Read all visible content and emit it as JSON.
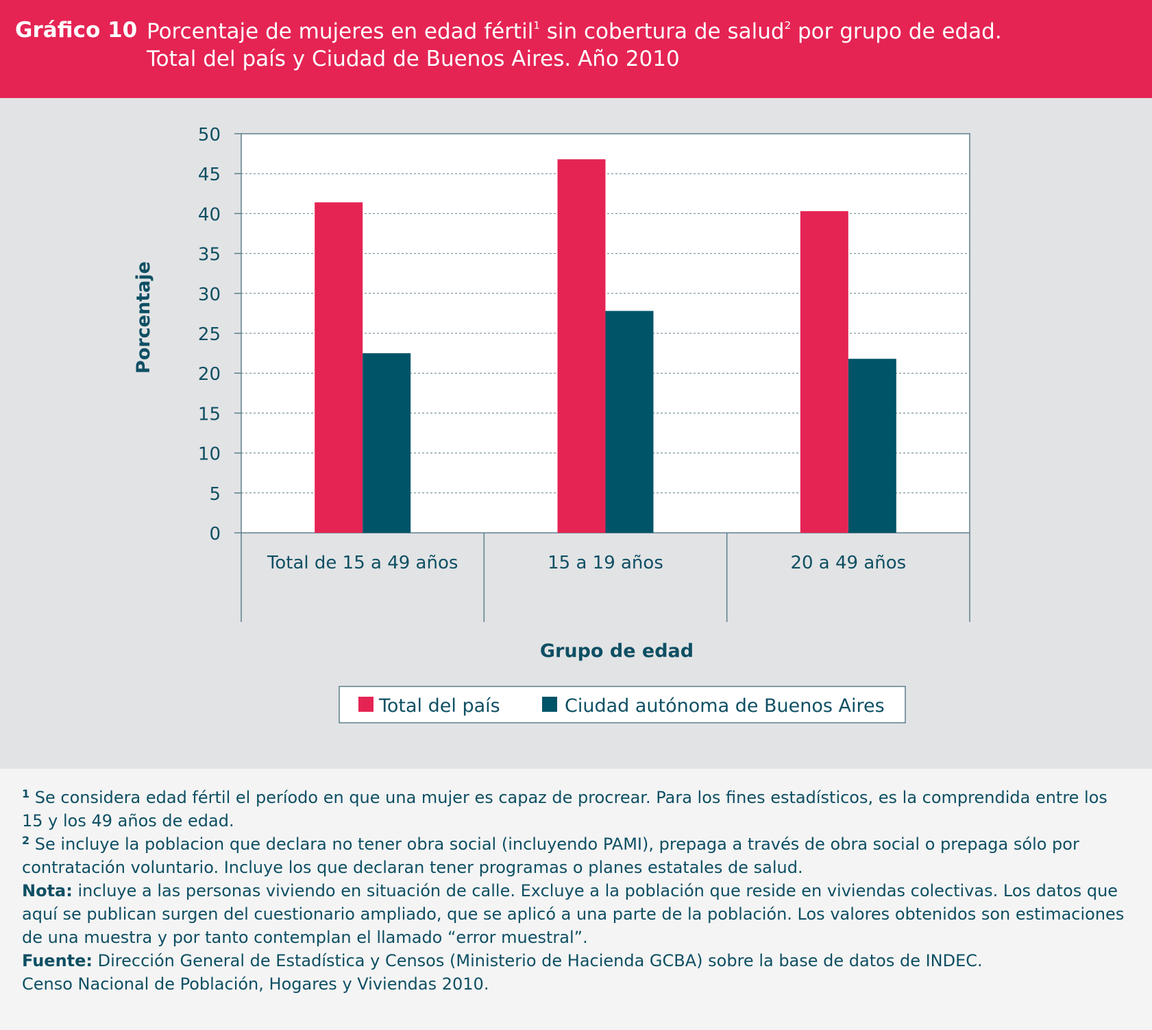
{
  "header": {
    "label": "Gráfico 10",
    "title_part1": "Porcentaje de mujeres en edad fértil",
    "title_sup1": "1",
    "title_part2": " sin cobertura de salud",
    "title_sup2": "2",
    "title_part3": " por grupo de edad.",
    "title_line2": "Total del país y Ciudad de Buenos Aires. Año 2010"
  },
  "colors": {
    "accent": "#e52454",
    "series2": "#005468",
    "text": "#0e4f63",
    "panel": "#e2e3e5"
  },
  "chart_data": {
    "type": "bar",
    "categories": [
      "Total de 15 a 49 años",
      "15 a 19 años",
      "20 a 49 años"
    ],
    "series": [
      {
        "name": "Total del país",
        "color": "#e52454",
        "values": [
          41.4,
          46.8,
          40.3
        ]
      },
      {
        "name": "Ciudad autónoma de Buenos Aires",
        "color": "#005468",
        "values": [
          22.5,
          27.8,
          21.8
        ]
      }
    ],
    "ylabel": "Porcentaje",
    "xlabel": "Grupo de edad",
    "ylim": [
      0,
      50
    ],
    "yticks": [
      0,
      5,
      10,
      15,
      20,
      25,
      30,
      35,
      40,
      45,
      50
    ],
    "grid": true,
    "legend": "bottom"
  },
  "notes": {
    "n1_sup": "1",
    "n1_text": " Se considera edad fértil el período en que una mujer es capaz de procrear. Para los fines estadísticos, es la comprendida entre los 15 y los 49 años de edad.",
    "n2_sup": "2",
    "n2_text": " Se incluye la poblacion que declara no tener obra social (incluyendo PAMI), prepaga a través de obra social o prepaga sólo por contratación voluntario. Incluye los que declaran tener programas o planes estatales de salud.",
    "nota_label": "Nota:",
    "nota_text": " incluye a las personas viviendo en situación de calle. Excluye a la población que reside en viviendas colectivas. Los datos que aquí se publican surgen del cuestionario ampliado, que se aplicó a una parte de la población. Los valores obtenidos son estimaciones de una muestra y por tanto contemplan el llamado “error muestral”.",
    "fuente_label": "Fuente:",
    "fuente_text": " Dirección General de Estadística y Censos (Ministerio de Hacienda GCBA) sobre la base de datos de INDEC.",
    "fuente_line2": "Censo Nacional de Población, Hogares y Viviendas 2010."
  }
}
